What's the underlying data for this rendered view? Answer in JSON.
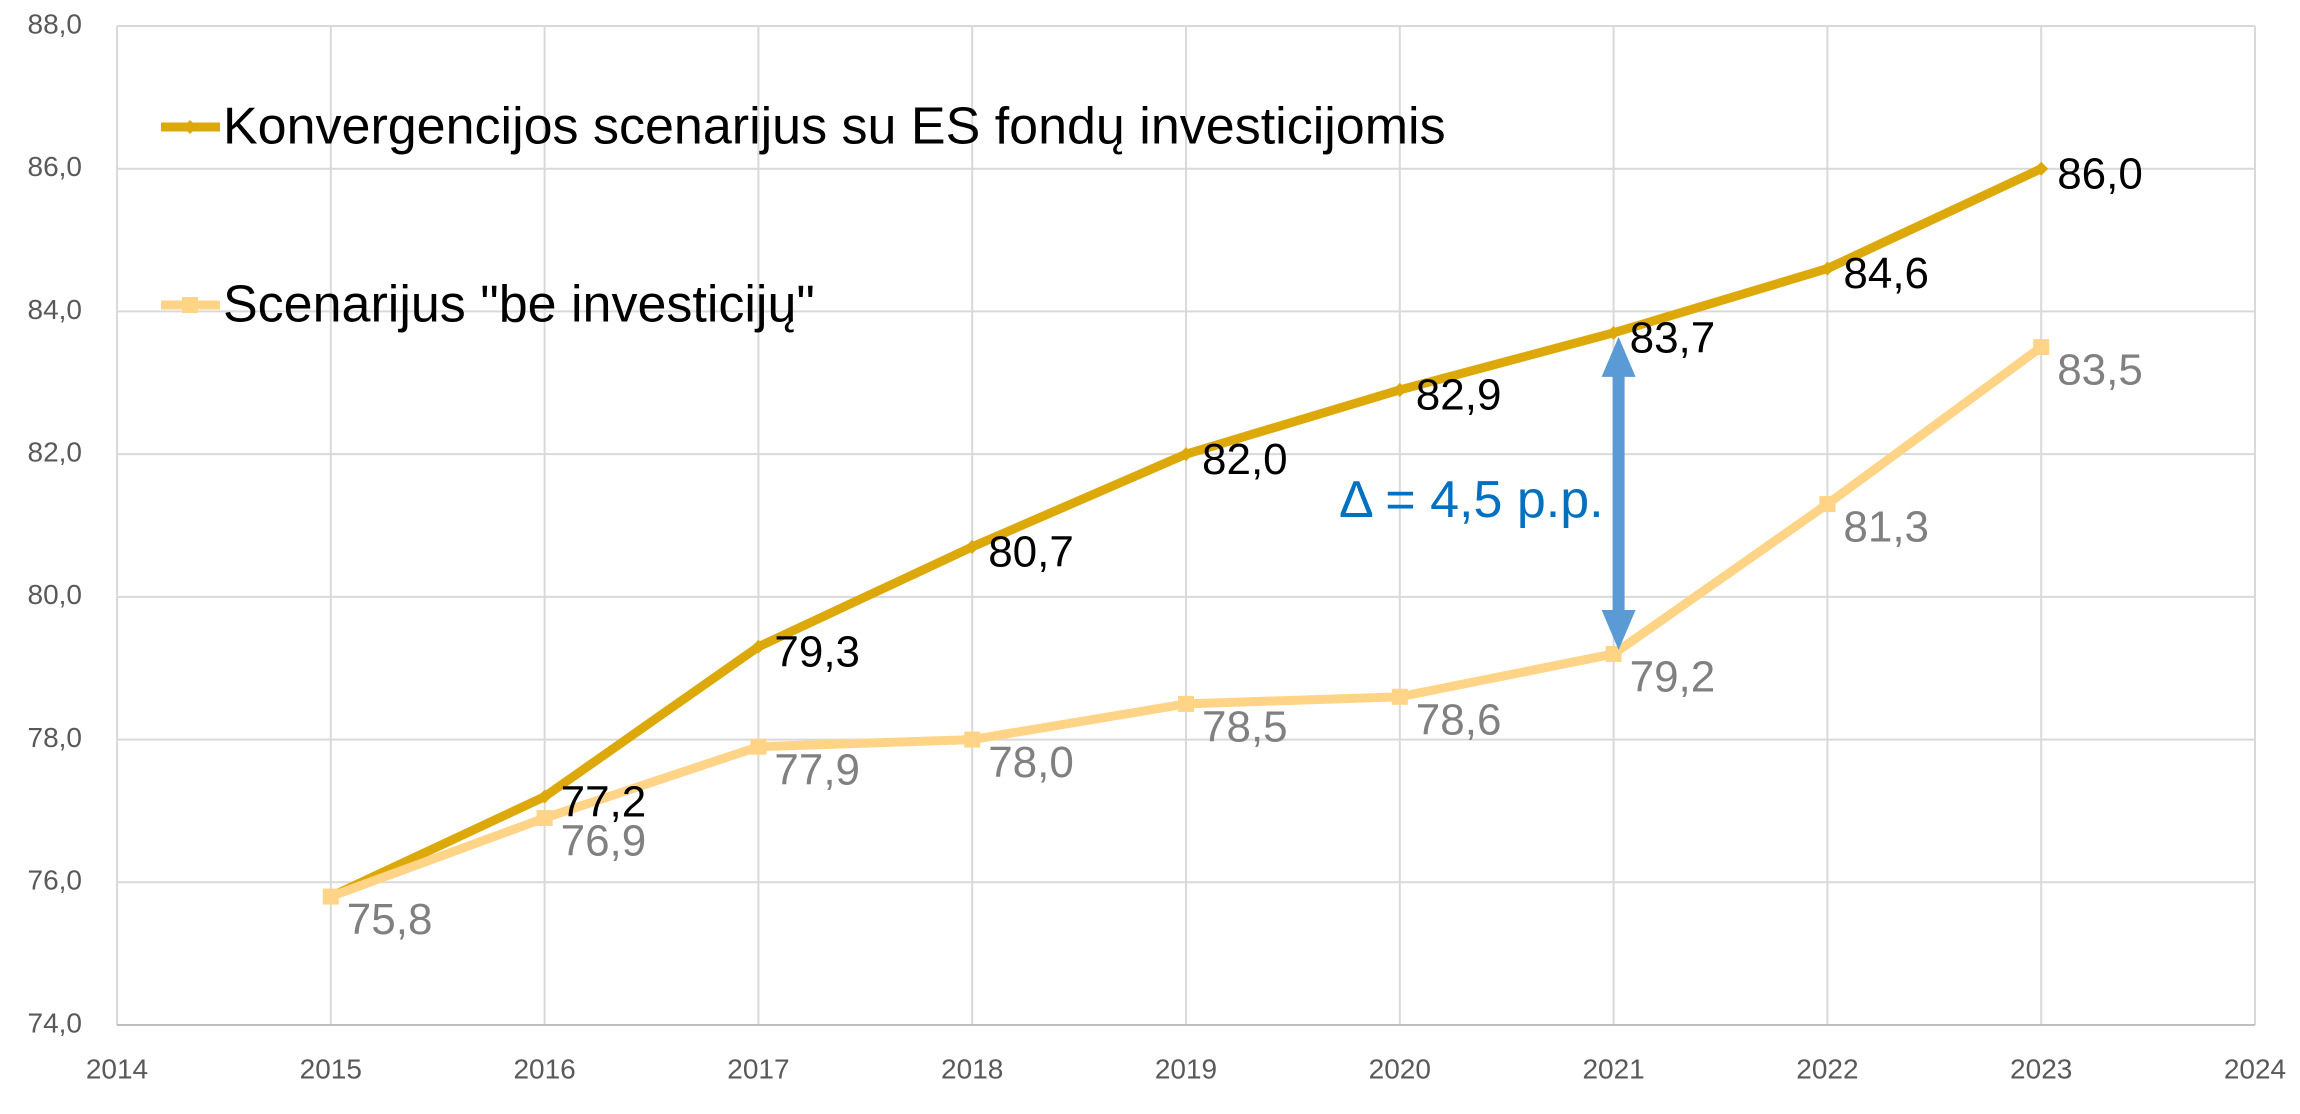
{
  "chart_data": {
    "type": "line",
    "x": [
      2015,
      2016,
      2017,
      2018,
      2019,
      2020,
      2021,
      2022,
      2023
    ],
    "series": [
      {
        "name": "Konvergencijos scenarijus su ES fondų investicijomis",
        "color": "#DDA90A",
        "values": [
          75.8,
          77.2,
          79.3,
          80.7,
          82.0,
          82.9,
          83.7,
          84.6,
          86.0
        ],
        "value_labels": [
          null,
          "77,2",
          "79,3",
          "80,7",
          "82,0",
          "82,9",
          "83,7",
          "84,6",
          "86,0"
        ]
      },
      {
        "name": "Scenarijus \"be investicijų\"",
        "color": "#FFD486",
        "values": [
          75.8,
          76.9,
          77.9,
          78.0,
          78.5,
          78.6,
          79.2,
          81.3,
          83.5
        ],
        "value_labels": [
          "75,8",
          "76,9",
          "77,9",
          "78,0",
          "78,5",
          "78,6",
          "79,2",
          "81,3",
          "83,5"
        ]
      }
    ],
    "xlim": [
      2014,
      2024
    ],
    "xticks": [
      2014,
      2015,
      2016,
      2017,
      2018,
      2019,
      2020,
      2021,
      2022,
      2023,
      2024
    ],
    "ylim": [
      74,
      88
    ],
    "yticks": [
      {
        "value": 74,
        "label": "74,0"
      },
      {
        "value": 76,
        "label": "76,0"
      },
      {
        "value": 78,
        "label": "78,0"
      },
      {
        "value": 80,
        "label": "80,0"
      },
      {
        "value": 82,
        "label": "82,0"
      },
      {
        "value": 84,
        "label": "84,0"
      },
      {
        "value": 86,
        "label": "86,0"
      },
      {
        "value": 88,
        "label": "88,0"
      }
    ],
    "grid": true,
    "legend": "top-left",
    "annotation": "Δ = 4,5 p.p.",
    "annotation_color": "#0070C0",
    "arrow_color": "#5B9BD5"
  }
}
